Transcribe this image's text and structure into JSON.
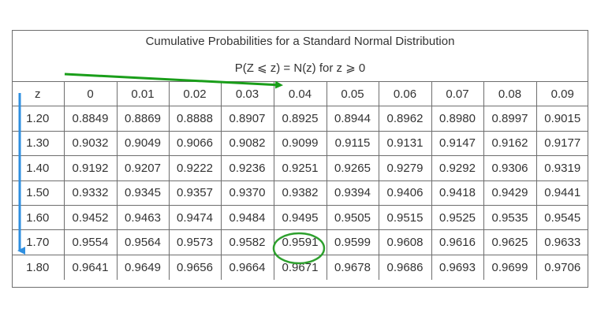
{
  "title": "Cumulative Probabilities for a Standard Normal Distribution",
  "subtitle": "P(Z  ⩽  z) = N(z) for z  ⩾  0",
  "table": {
    "headers": [
      "z",
      "0",
      "0.01",
      "0.02",
      "0.03",
      "0.04",
      "0.05",
      "0.06",
      "0.07",
      "0.08",
      "0.09"
    ],
    "rows": [
      [
        "1.20",
        "0.8849",
        "0.8869",
        "0.8888",
        "0.8907",
        "0.8925",
        "0.8944",
        "0.8962",
        "0.8980",
        "0.8997",
        "0.9015"
      ],
      [
        "1.30",
        "0.9032",
        "0.9049",
        "0.9066",
        "0.9082",
        "0.9099",
        "0.9115",
        "0.9131",
        "0.9147",
        "0.9162",
        "0.9177"
      ],
      [
        "1.40",
        "0.9192",
        "0.9207",
        "0.9222",
        "0.9236",
        "0.9251",
        "0.9265",
        "0.9279",
        "0.9292",
        "0.9306",
        "0.9319"
      ],
      [
        "1.50",
        "0.9332",
        "0.9345",
        "0.9357",
        "0.9370",
        "0.9382",
        "0.9394",
        "0.9406",
        "0.9418",
        "0.9429",
        "0.9441"
      ],
      [
        "1.60",
        "0.9452",
        "0.9463",
        "0.9474",
        "0.9484",
        "0.9495",
        "0.9505",
        "0.9515",
        "0.9525",
        "0.9535",
        "0.9545"
      ],
      [
        "1.70",
        "0.9554",
        "0.9564",
        "0.9573",
        "0.9582",
        "0.9591",
        "0.9599",
        "0.9608",
        "0.9616",
        "0.9625",
        "0.9633"
      ],
      [
        "1.80",
        "0.9641",
        "0.9649",
        "0.9656",
        "0.9664",
        "0.9671",
        "0.9678",
        "0.9686",
        "0.9693",
        "0.9699",
        "0.9706"
      ]
    ]
  },
  "annotations": {
    "highlighted_value": "0.9591",
    "highlighted_row_z": "1.70",
    "highlighted_column": "0.04",
    "horizontal_arrow_color": "#1a9e1a",
    "vertical_arrow_color": "#2f8fe0",
    "circle_color": "#2ea02e"
  }
}
